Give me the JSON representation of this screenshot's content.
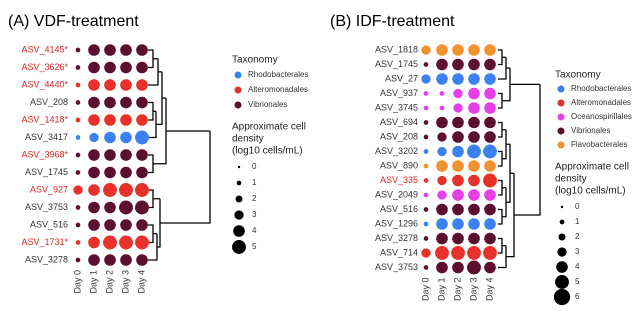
{
  "chart_data": [
    {
      "type": "dotmatrix",
      "title": "(A) VDF-treatment",
      "categories": [
        "Day 0",
        "Day 1",
        "Day 2",
        "Day 3",
        "Day 4"
      ],
      "rows": [
        "ASV_4145*",
        "ASV_3626*",
        "ASV_4440*",
        "ASV_208",
        "ASV_1418*",
        "ASV_3417",
        "ASV_3968*",
        "ASV_1745",
        "ASV_927",
        "ASV_3753",
        "ASV_516",
        "ASV_1731*",
        "ASV_3278"
      ],
      "label_colors": [
        "#d62728",
        "#d62728",
        "#d62728",
        "#333333",
        "#d62728",
        "#333333",
        "#d62728",
        "#333333",
        "#d62728",
        "#333333",
        "#333333",
        "#d62728",
        "#333333"
      ],
      "row_colors": [
        "#5c0f2e",
        "#5c0f2e",
        "#e8312a",
        "#5c0f2e",
        "#e8312a",
        "#3b82f0",
        "#5c0f2e",
        "#5c0f2e",
        "#e8312a",
        "#5c0f2e",
        "#5c0f2e",
        "#e8312a",
        "#5c0f2e"
      ],
      "values": [
        [
          1,
          4,
          4,
          4,
          4
        ],
        [
          1,
          4,
          4,
          4,
          4
        ],
        [
          1,
          4,
          4,
          4,
          4
        ],
        [
          1,
          4,
          4,
          4,
          4
        ],
        [
          1,
          4,
          4,
          4,
          4
        ],
        [
          1,
          3,
          4,
          4,
          5
        ],
        [
          1,
          4,
          4,
          4,
          4
        ],
        [
          1,
          4,
          4,
          4,
          4
        ],
        [
          3,
          4,
          5,
          5,
          5
        ],
        [
          1,
          4,
          4,
          5,
          5
        ],
        [
          1,
          4,
          4,
          4,
          4
        ],
        [
          1,
          4,
          5,
          5,
          5
        ],
        [
          1,
          4,
          4,
          4,
          4
        ]
      ],
      "legend_title": "Taxonomy",
      "taxa": [
        {
          "name": "Rhodobacterales",
          "color": "#3b82f0"
        },
        {
          "name": "Alteromonadales",
          "color": "#e8312a"
        },
        {
          "name": "Vibrionales",
          "color": "#5c0f2e"
        }
      ],
      "size_legend_title": [
        "Approximate cell",
        "density",
        "(log10 cells/mL)"
      ],
      "size_ticks": [
        0,
        1,
        2,
        3,
        4,
        5
      ]
    },
    {
      "type": "dotmatrix",
      "title": "(B) IDF-treatment",
      "categories": [
        "Day 0",
        "Day 1",
        "Day 2",
        "Day 3",
        "Day 4"
      ],
      "rows": [
        "ASV_1818",
        "ASV_1745",
        "ASV_27",
        "ASV_937",
        "ASV_3745",
        "ASV_694",
        "ASV_208",
        "ASV_3202",
        "ASV_890",
        "ASV_335",
        "ASV_2049",
        "ASV_516",
        "ASV_1296",
        "ASV_3278",
        "ASV_714",
        "ASV_3753"
      ],
      "label_colors": [
        "#333333",
        "#333333",
        "#333333",
        "#333333",
        "#333333",
        "#333333",
        "#333333",
        "#333333",
        "#333333",
        "#d62728",
        "#333333",
        "#333333",
        "#333333",
        "#333333",
        "#333333",
        "#333333"
      ],
      "row_colors": [
        "#f0922e",
        "#5c0f2e",
        "#3b82f0",
        "#e63ee8",
        "#e63ee8",
        "#5c0f2e",
        "#5c0f2e",
        "#3b82f0",
        "#f0922e",
        "#e8312a",
        "#e63ee8",
        "#5c0f2e",
        "#3b82f0",
        "#5c0f2e",
        "#e8312a",
        "#5c0f2e"
      ],
      "values": [
        [
          3,
          4,
          4,
          4,
          4
        ],
        [
          1,
          4,
          4,
          4,
          4
        ],
        [
          3,
          4,
          4,
          4,
          4
        ],
        [
          1,
          1,
          3,
          4,
          4
        ],
        [
          1,
          1,
          3,
          4,
          4
        ],
        [
          1,
          4,
          4,
          4,
          4
        ],
        [
          1,
          3,
          4,
          4,
          4
        ],
        [
          1,
          3,
          4,
          5,
          5
        ],
        [
          1,
          4,
          4,
          4,
          4
        ],
        [
          1,
          3,
          4,
          4,
          5
        ],
        [
          1,
          3,
          4,
          4,
          4
        ],
        [
          1,
          4,
          4,
          4,
          4
        ],
        [
          1,
          4,
          4,
          4,
          4
        ],
        [
          1,
          4,
          4,
          4,
          4
        ],
        [
          3,
          5,
          5,
          5,
          5
        ],
        [
          1,
          4,
          4,
          5,
          4
        ]
      ],
      "legend_title": "Taxonomy",
      "taxa": [
        {
          "name": "Rhodobacterales",
          "color": "#3b82f0"
        },
        {
          "name": "Alteromonadales",
          "color": "#e8312a"
        },
        {
          "name": "Oceanospirillales",
          "color": "#e63ee8"
        },
        {
          "name": "Vibrionales",
          "color": "#5c0f2e"
        },
        {
          "name": "Flavobacterales",
          "color": "#f0922e"
        }
      ],
      "size_legend_title": [
        "Approximate cell",
        "density",
        "(log10 cells/mL)"
      ],
      "size_ticks": [
        0,
        1,
        2,
        3,
        4,
        5,
        6
      ]
    }
  ]
}
